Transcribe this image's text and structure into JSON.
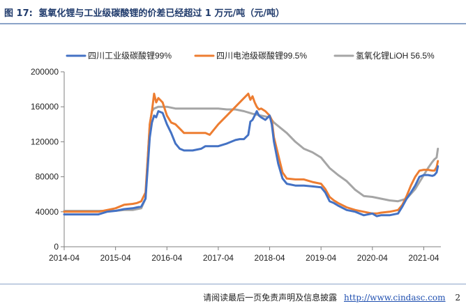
{
  "figure": {
    "number": "图 17:",
    "title": "氢氧化锂与工业级碳酸锂的价差已经超过 1 万元/吨（元/吨）"
  },
  "footer": {
    "disclaimer": "请阅读最后一页免责声明及信息披露",
    "url": "http://www.cindasc.com",
    "page": "2"
  },
  "chart_data": {
    "type": "line",
    "title": "",
    "xlabel": "",
    "ylabel": "",
    "x_unit": "months since 2014-04",
    "x_ticks": [
      0,
      12,
      24,
      36,
      48,
      60,
      72,
      84
    ],
    "x_tick_labels": [
      "2014-04",
      "2015-04",
      "2016-04",
      "2017-04",
      "2018-04",
      "2019-04",
      "2020-04",
      "2021-04"
    ],
    "xlim": [
      0,
      88
    ],
    "ylim": [
      0,
      200000
    ],
    "y_ticks": [
      0,
      40000,
      80000,
      120000,
      160000,
      200000
    ],
    "y_tick_labels": [
      "0",
      "40000",
      "80000",
      "120000",
      "160000",
      "200000"
    ],
    "legend_position": "top",
    "series": [
      {
        "name": "四川工业级碳酸锂99%",
        "color": "#4472c4",
        "x": [
          0,
          4,
          8,
          10,
          12,
          14,
          16,
          17,
          18,
          19,
          19.5,
          20,
          20.5,
          21,
          21.5,
          22,
          23,
          24,
          25,
          26,
          27,
          28,
          30,
          32,
          33,
          34,
          36,
          38,
          40,
          41,
          42,
          43,
          43.5,
          44,
          44.5,
          45,
          45.5,
          46,
          47,
          48,
          48.5,
          49,
          50,
          51,
          52,
          54,
          56,
          58,
          60,
          61,
          62,
          63,
          64,
          66,
          68,
          70,
          72,
          73,
          74,
          76,
          78,
          79,
          80,
          81,
          82,
          83,
          84,
          85,
          86,
          86.5,
          87,
          87.3
        ],
        "y": [
          37000,
          37000,
          37000,
          40000,
          41000,
          43000,
          44000,
          45000,
          46000,
          55000,
          90000,
          125000,
          142000,
          150000,
          148000,
          155000,
          153000,
          140000,
          130000,
          118000,
          112000,
          110000,
          110000,
          112000,
          115000,
          115000,
          115000,
          118000,
          122000,
          123000,
          123000,
          128000,
          143000,
          145000,
          150000,
          155000,
          150000,
          148000,
          145000,
          150000,
          140000,
          120000,
          95000,
          78000,
          72000,
          70000,
          70000,
          69000,
          68000,
          62000,
          52000,
          50000,
          47000,
          42000,
          40000,
          36000,
          38000,
          35000,
          36000,
          36000,
          38000,
          46000,
          55000,
          62000,
          70000,
          80000,
          82000,
          82000,
          81000,
          82000,
          85000,
          92000
        ]
      },
      {
        "name": "四川电池级碳酸锂99.5%",
        "color": "#ed7d31",
        "x": [
          0,
          4,
          8,
          10,
          12,
          14,
          16,
          17,
          18,
          19,
          19.5,
          20,
          20.5,
          21,
          21.5,
          22,
          23,
          24,
          25,
          26,
          27,
          28,
          30,
          32,
          33,
          34,
          36,
          38,
          40,
          41,
          42,
          43,
          43.5,
          44,
          44.5,
          45,
          45.5,
          46,
          47,
          48,
          48.5,
          49,
          50,
          51,
          52,
          54,
          56,
          58,
          60,
          61,
          62,
          63,
          64,
          66,
          68,
          70,
          72,
          73,
          74,
          76,
          78,
          79,
          80,
          81,
          82,
          83,
          84,
          85,
          86,
          86.5,
          87,
          87.3
        ],
        "y": [
          40000,
          40000,
          40000,
          42000,
          44000,
          48000,
          49000,
          50000,
          52000,
          62000,
          100000,
          140000,
          155000,
          175000,
          165000,
          170000,
          165000,
          150000,
          142000,
          140000,
          135000,
          130000,
          130000,
          130000,
          130000,
          128000,
          140000,
          150000,
          160000,
          165000,
          170000,
          175000,
          168000,
          172000,
          165000,
          160000,
          157000,
          158000,
          155000,
          150000,
          145000,
          125000,
          105000,
          85000,
          78000,
          77000,
          77000,
          74000,
          72000,
          66000,
          57000,
          53000,
          50000,
          45000,
          42000,
          40000,
          38000,
          38000,
          39000,
          40000,
          42000,
          48000,
          58000,
          70000,
          80000,
          87000,
          88000,
          88000,
          87000,
          87000,
          91000,
          98000
        ]
      },
      {
        "name": "氢氧化锂LiOH 56.5%",
        "color": "#a5a5a5",
        "x": [
          0,
          4,
          8,
          10,
          12,
          14,
          16,
          17,
          18,
          19,
          19.5,
          20,
          20.5,
          21,
          22,
          24,
          26,
          28,
          30,
          32,
          34,
          36,
          38,
          40,
          42,
          44,
          46,
          48,
          49,
          50,
          52,
          54,
          56,
          58,
          60,
          62,
          64,
          66,
          68,
          70,
          72,
          74,
          76,
          78,
          80,
          82,
          84,
          85,
          86,
          86.5,
          87,
          87.3
        ],
        "y": [
          41000,
          41000,
          41000,
          41000,
          41000,
          42000,
          42000,
          43000,
          44000,
          55000,
          100000,
          140000,
          155000,
          158000,
          160000,
          160000,
          158000,
          158000,
          158000,
          158000,
          158000,
          158000,
          157000,
          157000,
          155000,
          152000,
          150000,
          148000,
          142000,
          138000,
          130000,
          120000,
          112000,
          108000,
          102000,
          90000,
          82000,
          75000,
          65000,
          58000,
          57000,
          55000,
          53000,
          52000,
          55000,
          66000,
          82000,
          90000,
          97000,
          100000,
          102000,
          112000
        ]
      }
    ]
  }
}
